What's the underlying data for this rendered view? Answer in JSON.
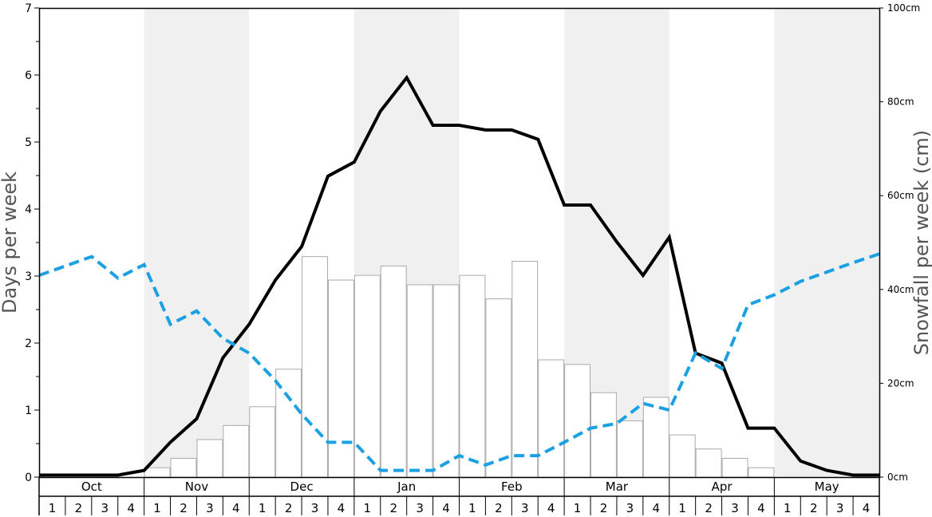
{
  "chart_data": {
    "type": "bar",
    "ylabel": "Days per week",
    "y2label": "Snowfall per week (cm)",
    "ylim": [
      0,
      7
    ],
    "y2lim": [
      0,
      100
    ],
    "yticks": [
      "0",
      "1",
      "2",
      "3",
      "4",
      "5",
      "6",
      "7"
    ],
    "y2ticks": [
      "0cm",
      "20cm",
      "40cm",
      "60cm",
      "80cm",
      "100cm"
    ],
    "months": [
      "Oct",
      "Nov",
      "Dec",
      "Jan",
      "Feb",
      "Mar",
      "Apr",
      "May"
    ],
    "weeks": [
      "1",
      "2",
      "3",
      "4"
    ],
    "shaded_months": [
      "Nov",
      "Jan",
      "Mar",
      "May"
    ],
    "colors": {
      "bar_fill": "#ffffff",
      "bar_stroke": "#aaaaaa",
      "line_black": "#000000",
      "line_blue": "#1ba1e2",
      "shade": "#f0f0f0"
    },
    "series": [
      {
        "kind": "bars",
        "axis": "right",
        "values": [
          0,
          0,
          0,
          0,
          2,
          4,
          8,
          11,
          15,
          23,
          47,
          42,
          43,
          45,
          41,
          41,
          43,
          38,
          46,
          25,
          24,
          18,
          12,
          17,
          9,
          6,
          4,
          2,
          0,
          0,
          0,
          0
        ]
      },
      {
        "kind": "line",
        "style": "solid",
        "axis": "left",
        "values": [
          0.03,
          0.03,
          0.03,
          0.03,
          0.1,
          0.52,
          0.87,
          1.78,
          2.28,
          2.94,
          3.44,
          4.49,
          4.7,
          5.46,
          5.96,
          5.25,
          5.25,
          5.18,
          5.18,
          5.04,
          4.06,
          4.06,
          3.51,
          3.01,
          3.58,
          1.85,
          1.7,
          0.73,
          0.73,
          0.24,
          0.1,
          0.03,
          0.03
        ]
      },
      {
        "kind": "line",
        "style": "dashed",
        "axis": "left",
        "values": [
          3.01,
          3.15,
          3.29,
          2.97,
          3.17,
          2.28,
          2.48,
          2.07,
          1.85,
          1.44,
          0.94,
          0.52,
          0.52,
          0.1,
          0.1,
          0.1,
          0.32,
          0.18,
          0.32,
          0.32,
          0.52,
          0.73,
          0.8,
          1.1,
          1.0,
          1.85,
          1.62,
          2.57,
          2.72,
          2.92,
          3.06,
          3.2,
          3.33
        ]
      }
    ]
  }
}
